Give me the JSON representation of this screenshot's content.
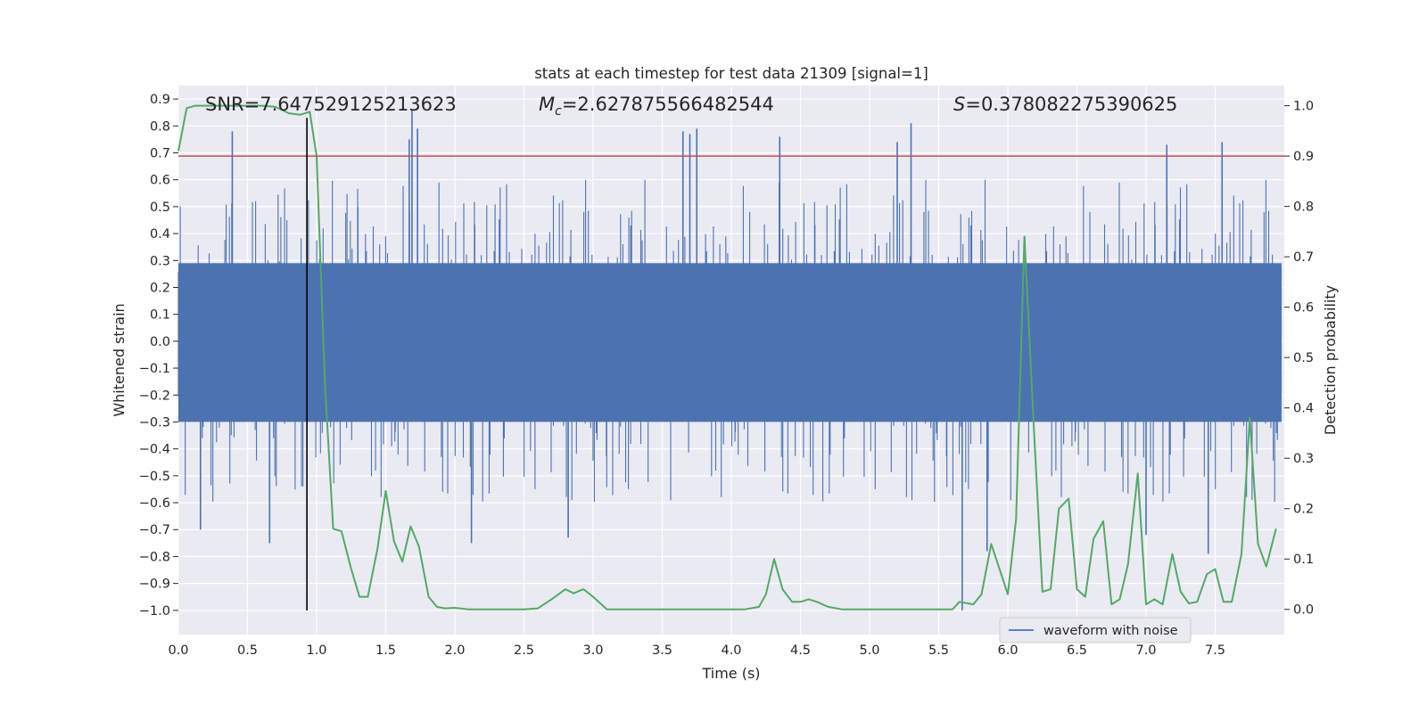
{
  "chart_data": {
    "type": "line",
    "title": "stats at each timestep for test data 21309 [signal=1]",
    "xlabel": "Time (s)",
    "ylabel": "Whitened strain",
    "y2label": "Detection probability",
    "xlim": [
      0.0,
      8.0
    ],
    "ylim": [
      -1.09,
      0.95
    ],
    "y2lim": [
      -0.05,
      1.04
    ],
    "xticks": [
      "0.0",
      "0.5",
      "1.0",
      "1.5",
      "2.0",
      "2.5",
      "3.0",
      "3.5",
      "4.0",
      "4.5",
      "5.0",
      "5.5",
      "6.0",
      "6.5",
      "7.0",
      "7.5"
    ],
    "yticks": [
      "0.9",
      "0.8",
      "0.7",
      "0.6",
      "0.5",
      "0.4",
      "0.3",
      "0.2",
      "0.1",
      "0.0",
      "-0.1",
      "-0.2",
      "-0.3",
      "-0.4",
      "-0.5",
      "-0.6",
      "-0.7",
      "-0.8",
      "-0.9",
      "-1.0"
    ],
    "y2ticks": [
      "1.0",
      "0.9",
      "0.8",
      "0.7",
      "0.6",
      "0.5",
      "0.4",
      "0.3",
      "0.2",
      "0.1",
      "0.0"
    ],
    "grid": true,
    "background": "#eaeaf2",
    "annotations": {
      "snr": "SNR=7.647529125213623",
      "mc_symbol": "M",
      "mc_sub": "c",
      "mc_value": "=2.627875566482544",
      "s_symbol": "S",
      "s_value": "=0.378082275390625"
    },
    "threshold": {
      "value": 0.9,
      "axis": "y2",
      "color": "#c44e52"
    },
    "marker_line": {
      "x": 0.93,
      "y_from": -1.0,
      "y_to": 0.83,
      "color": "#000000"
    },
    "legend": {
      "label": "waveform with noise",
      "loc": "lower right",
      "color": "#4c72b0"
    },
    "series": [
      {
        "name": "waveform with noise",
        "axis": "y",
        "color": "#4c72b0",
        "style": "dense noise, band approx -0.3..0.3 with spikes",
        "spikes": [
          {
            "x": 0.39,
            "y": 0.78
          },
          {
            "x": 1.69,
            "y": 0.86
          },
          {
            "x": 1.73,
            "y": 0.79
          },
          {
            "x": 1.67,
            "y": 0.75
          },
          {
            "x": 3.65,
            "y": 0.78
          },
          {
            "x": 3.7,
            "y": 0.77
          },
          {
            "x": 3.75,
            "y": 0.79
          },
          {
            "x": 4.35,
            "y": 0.76
          },
          {
            "x": 5.3,
            "y": 0.81
          },
          {
            "x": 5.2,
            "y": 0.74
          },
          {
            "x": 7.15,
            "y": 0.73
          },
          {
            "x": 7.55,
            "y": 0.74
          },
          {
            "x": 0.16,
            "y": -0.7
          },
          {
            "x": 0.66,
            "y": -0.75
          },
          {
            "x": 2.12,
            "y": -0.75
          },
          {
            "x": 2.82,
            "y": -0.73
          },
          {
            "x": 5.67,
            "y": -1.0
          },
          {
            "x": 5.85,
            "y": -0.78
          },
          {
            "x": 7.0,
            "y": -0.72
          },
          {
            "x": 7.45,
            "y": -0.79
          }
        ]
      },
      {
        "name": "",
        "axis": "y2",
        "color": "#55a868",
        "x": [
          0.0,
          0.06,
          0.12,
          0.2,
          0.3,
          0.4,
          0.5,
          0.6,
          0.7,
          0.8,
          0.88,
          0.95,
          1.0,
          1.06,
          1.12,
          1.18,
          1.25,
          1.31,
          1.37,
          1.44,
          1.5,
          1.56,
          1.62,
          1.68,
          1.74,
          1.81,
          1.87,
          1.93,
          2.0,
          2.1,
          2.2,
          2.3,
          2.4,
          2.5,
          2.6,
          2.7,
          2.8,
          2.86,
          2.93,
          3.0,
          3.1,
          3.2,
          3.3,
          3.5,
          3.7,
          3.9,
          4.1,
          4.2,
          4.25,
          4.31,
          4.37,
          4.44,
          4.5,
          4.56,
          4.62,
          4.7,
          4.8,
          5.0,
          5.2,
          5.4,
          5.6,
          5.65,
          5.75,
          5.81,
          5.88,
          5.94,
          6.0,
          6.06,
          6.12,
          6.19,
          6.25,
          6.31,
          6.37,
          6.44,
          6.5,
          6.56,
          6.62,
          6.69,
          6.75,
          6.81,
          6.87,
          6.94,
          7.0,
          7.06,
          7.12,
          7.19,
          7.25,
          7.31,
          7.37,
          7.44,
          7.5,
          7.56,
          7.62,
          7.69,
          7.75,
          7.81,
          7.87,
          7.94
        ],
        "y": [
          0.91,
          0.995,
          1.0,
          1.0,
          1.0,
          1.0,
          1.0,
          1.0,
          0.998,
          0.985,
          0.982,
          0.988,
          0.9,
          0.45,
          0.16,
          0.155,
          0.08,
          0.025,
          0.025,
          0.12,
          0.235,
          0.135,
          0.095,
          0.165,
          0.125,
          0.025,
          0.005,
          0.002,
          0.003,
          0.0,
          0.0,
          0.0,
          0.0,
          0.0,
          0.002,
          0.02,
          0.04,
          0.032,
          0.04,
          0.025,
          0.0,
          0.0,
          0.0,
          0.0,
          0.0,
          0.0,
          0.0,
          0.005,
          0.03,
          0.1,
          0.04,
          0.015,
          0.015,
          0.02,
          0.015,
          0.005,
          0.0,
          0.0,
          0.0,
          0.0,
          0.0,
          0.015,
          0.01,
          0.03,
          0.13,
          0.08,
          0.03,
          0.18,
          0.74,
          0.35,
          0.035,
          0.04,
          0.2,
          0.22,
          0.04,
          0.025,
          0.14,
          0.175,
          0.01,
          0.02,
          0.09,
          0.27,
          0.01,
          0.02,
          0.01,
          0.11,
          0.035,
          0.012,
          0.015,
          0.07,
          0.08,
          0.015,
          0.015,
          0.11,
          0.38,
          0.13,
          0.085,
          0.16
        ]
      }
    ]
  }
}
